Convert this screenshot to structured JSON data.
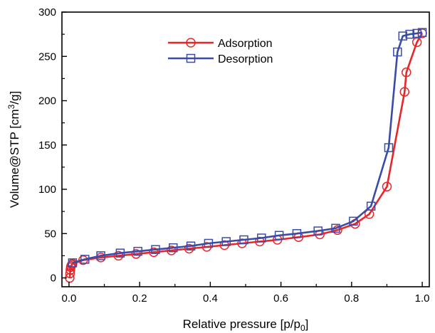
{
  "chart_data": {
    "type": "line",
    "title": "",
    "xlabel": "Relative pressure [p/p",
    "xlabel_sub": "0",
    "xlabel_end": "]",
    "ylabel": "Volume@STP [cm",
    "ylabel_sup": "3",
    "ylabel_end": "/g]",
    "xlim": [
      -0.02,
      1.02
    ],
    "ylim": [
      -10,
      300
    ],
    "xticks": [
      0.0,
      0.2,
      0.4,
      0.6,
      0.8,
      1.0
    ],
    "xtick_labels": [
      "0.0",
      "0.2",
      "0.4",
      "0.6",
      "0.8",
      "1.0"
    ],
    "yticks": [
      0,
      50,
      100,
      150,
      200,
      250,
      300
    ],
    "ytick_labels": [
      "0",
      "50",
      "100",
      "150",
      "200",
      "250",
      "300"
    ],
    "legend_position": "top-center",
    "grid": false,
    "series": [
      {
        "name": "Adsorption",
        "color": "#e8262a",
        "marker": "circle",
        "points": [
          [
            0.002,
            0
          ],
          [
            0.003,
            5
          ],
          [
            0.004,
            9
          ],
          [
            0.005,
            12
          ],
          [
            0.006,
            13.5
          ],
          [
            0.008,
            15
          ],
          [
            0.01,
            16
          ],
          [
            0.04,
            20
          ],
          [
            0.09,
            23
          ],
          [
            0.14,
            25
          ],
          [
            0.19,
            27
          ],
          [
            0.24,
            29
          ],
          [
            0.29,
            31
          ],
          [
            0.34,
            33
          ],
          [
            0.39,
            35
          ],
          [
            0.44,
            37
          ],
          [
            0.49,
            39
          ],
          [
            0.54,
            41
          ],
          [
            0.59,
            43
          ],
          [
            0.65,
            46
          ],
          [
            0.71,
            49
          ],
          [
            0.76,
            54
          ],
          [
            0.81,
            61
          ],
          [
            0.85,
            72
          ],
          [
            0.9,
            103
          ],
          [
            0.95,
            210
          ],
          [
            0.955,
            232
          ],
          [
            0.985,
            266
          ],
          [
            1.0,
            276
          ]
        ]
      },
      {
        "name": "Desorption",
        "color": "#3b4ca8",
        "marker": "square",
        "points": [
          [
            1.0,
            277
          ],
          [
            0.985,
            276
          ],
          [
            0.965,
            275
          ],
          [
            0.945,
            273
          ],
          [
            0.93,
            255
          ],
          [
            0.905,
            147
          ],
          [
            0.855,
            81
          ],
          [
            0.805,
            64
          ],
          [
            0.755,
            56
          ],
          [
            0.705,
            53
          ],
          [
            0.645,
            50
          ],
          [
            0.595,
            48
          ],
          [
            0.545,
            45
          ],
          [
            0.495,
            43
          ],
          [
            0.445,
            41
          ],
          [
            0.395,
            39
          ],
          [
            0.345,
            36
          ],
          [
            0.295,
            34
          ],
          [
            0.245,
            32
          ],
          [
            0.195,
            30
          ],
          [
            0.145,
            28
          ],
          [
            0.09,
            25
          ],
          [
            0.045,
            21
          ],
          [
            0.01,
            17
          ]
        ]
      }
    ]
  }
}
